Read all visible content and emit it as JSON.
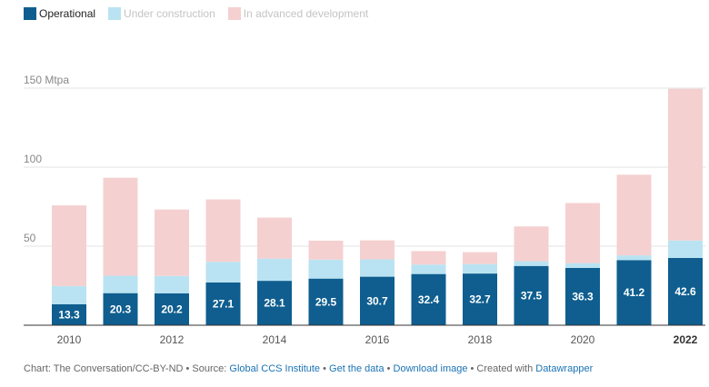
{
  "legend": {
    "operational": "Operational",
    "under_construction": "Under construction",
    "advanced_development": "In advanced development"
  },
  "colors": {
    "operational": "#0f5e8f",
    "under_construction": "#b9e3f2",
    "advanced_development": "#f5d0d0",
    "grid": "#e3e3e3",
    "baseline": "#333333"
  },
  "chart_data": {
    "type": "bar",
    "stacked": true,
    "categories": [
      "2010",
      "2011",
      "2012",
      "2013",
      "2014",
      "2015",
      "2016",
      "2017",
      "2018",
      "2019",
      "2020",
      "2021",
      "2022"
    ],
    "x_tick_labels": [
      "2010",
      "2012",
      "2014",
      "2016",
      "2018",
      "2020",
      "2022"
    ],
    "highlight_tick": "2022",
    "series": [
      {
        "name": "Operational",
        "values": [
          13.3,
          20.3,
          20.2,
          27.1,
          28.1,
          29.5,
          30.7,
          32.4,
          32.7,
          37.5,
          36.3,
          41.2,
          42.6
        ]
      },
      {
        "name": "Under construction",
        "values": [
          11.5,
          11,
          11,
          13,
          14,
          12,
          11,
          6,
          6,
          3,
          3,
          3,
          11
        ]
      },
      {
        "name": "In advanced development",
        "values": [
          51,
          62,
          42,
          39.5,
          26,
          12,
          12,
          8.5,
          7.5,
          22,
          38,
          51,
          96
        ]
      }
    ],
    "y_ticks": [
      50,
      100,
      150
    ],
    "y_tick_labels": [
      "50",
      "100",
      "150 Mtpa"
    ],
    "ylim": [
      0,
      150
    ],
    "grid": true,
    "legend_position": "top-left"
  },
  "footer": {
    "prefix": "Chart: The Conversation/CC-BY-ND • Source: ",
    "source_link": "Global CCS Institute",
    "sep1": " • ",
    "data_link": "Get the data",
    "sep2": " • ",
    "image_link": "Download image",
    "sep3": " • Created with ",
    "tool_link": "Datawrapper"
  }
}
